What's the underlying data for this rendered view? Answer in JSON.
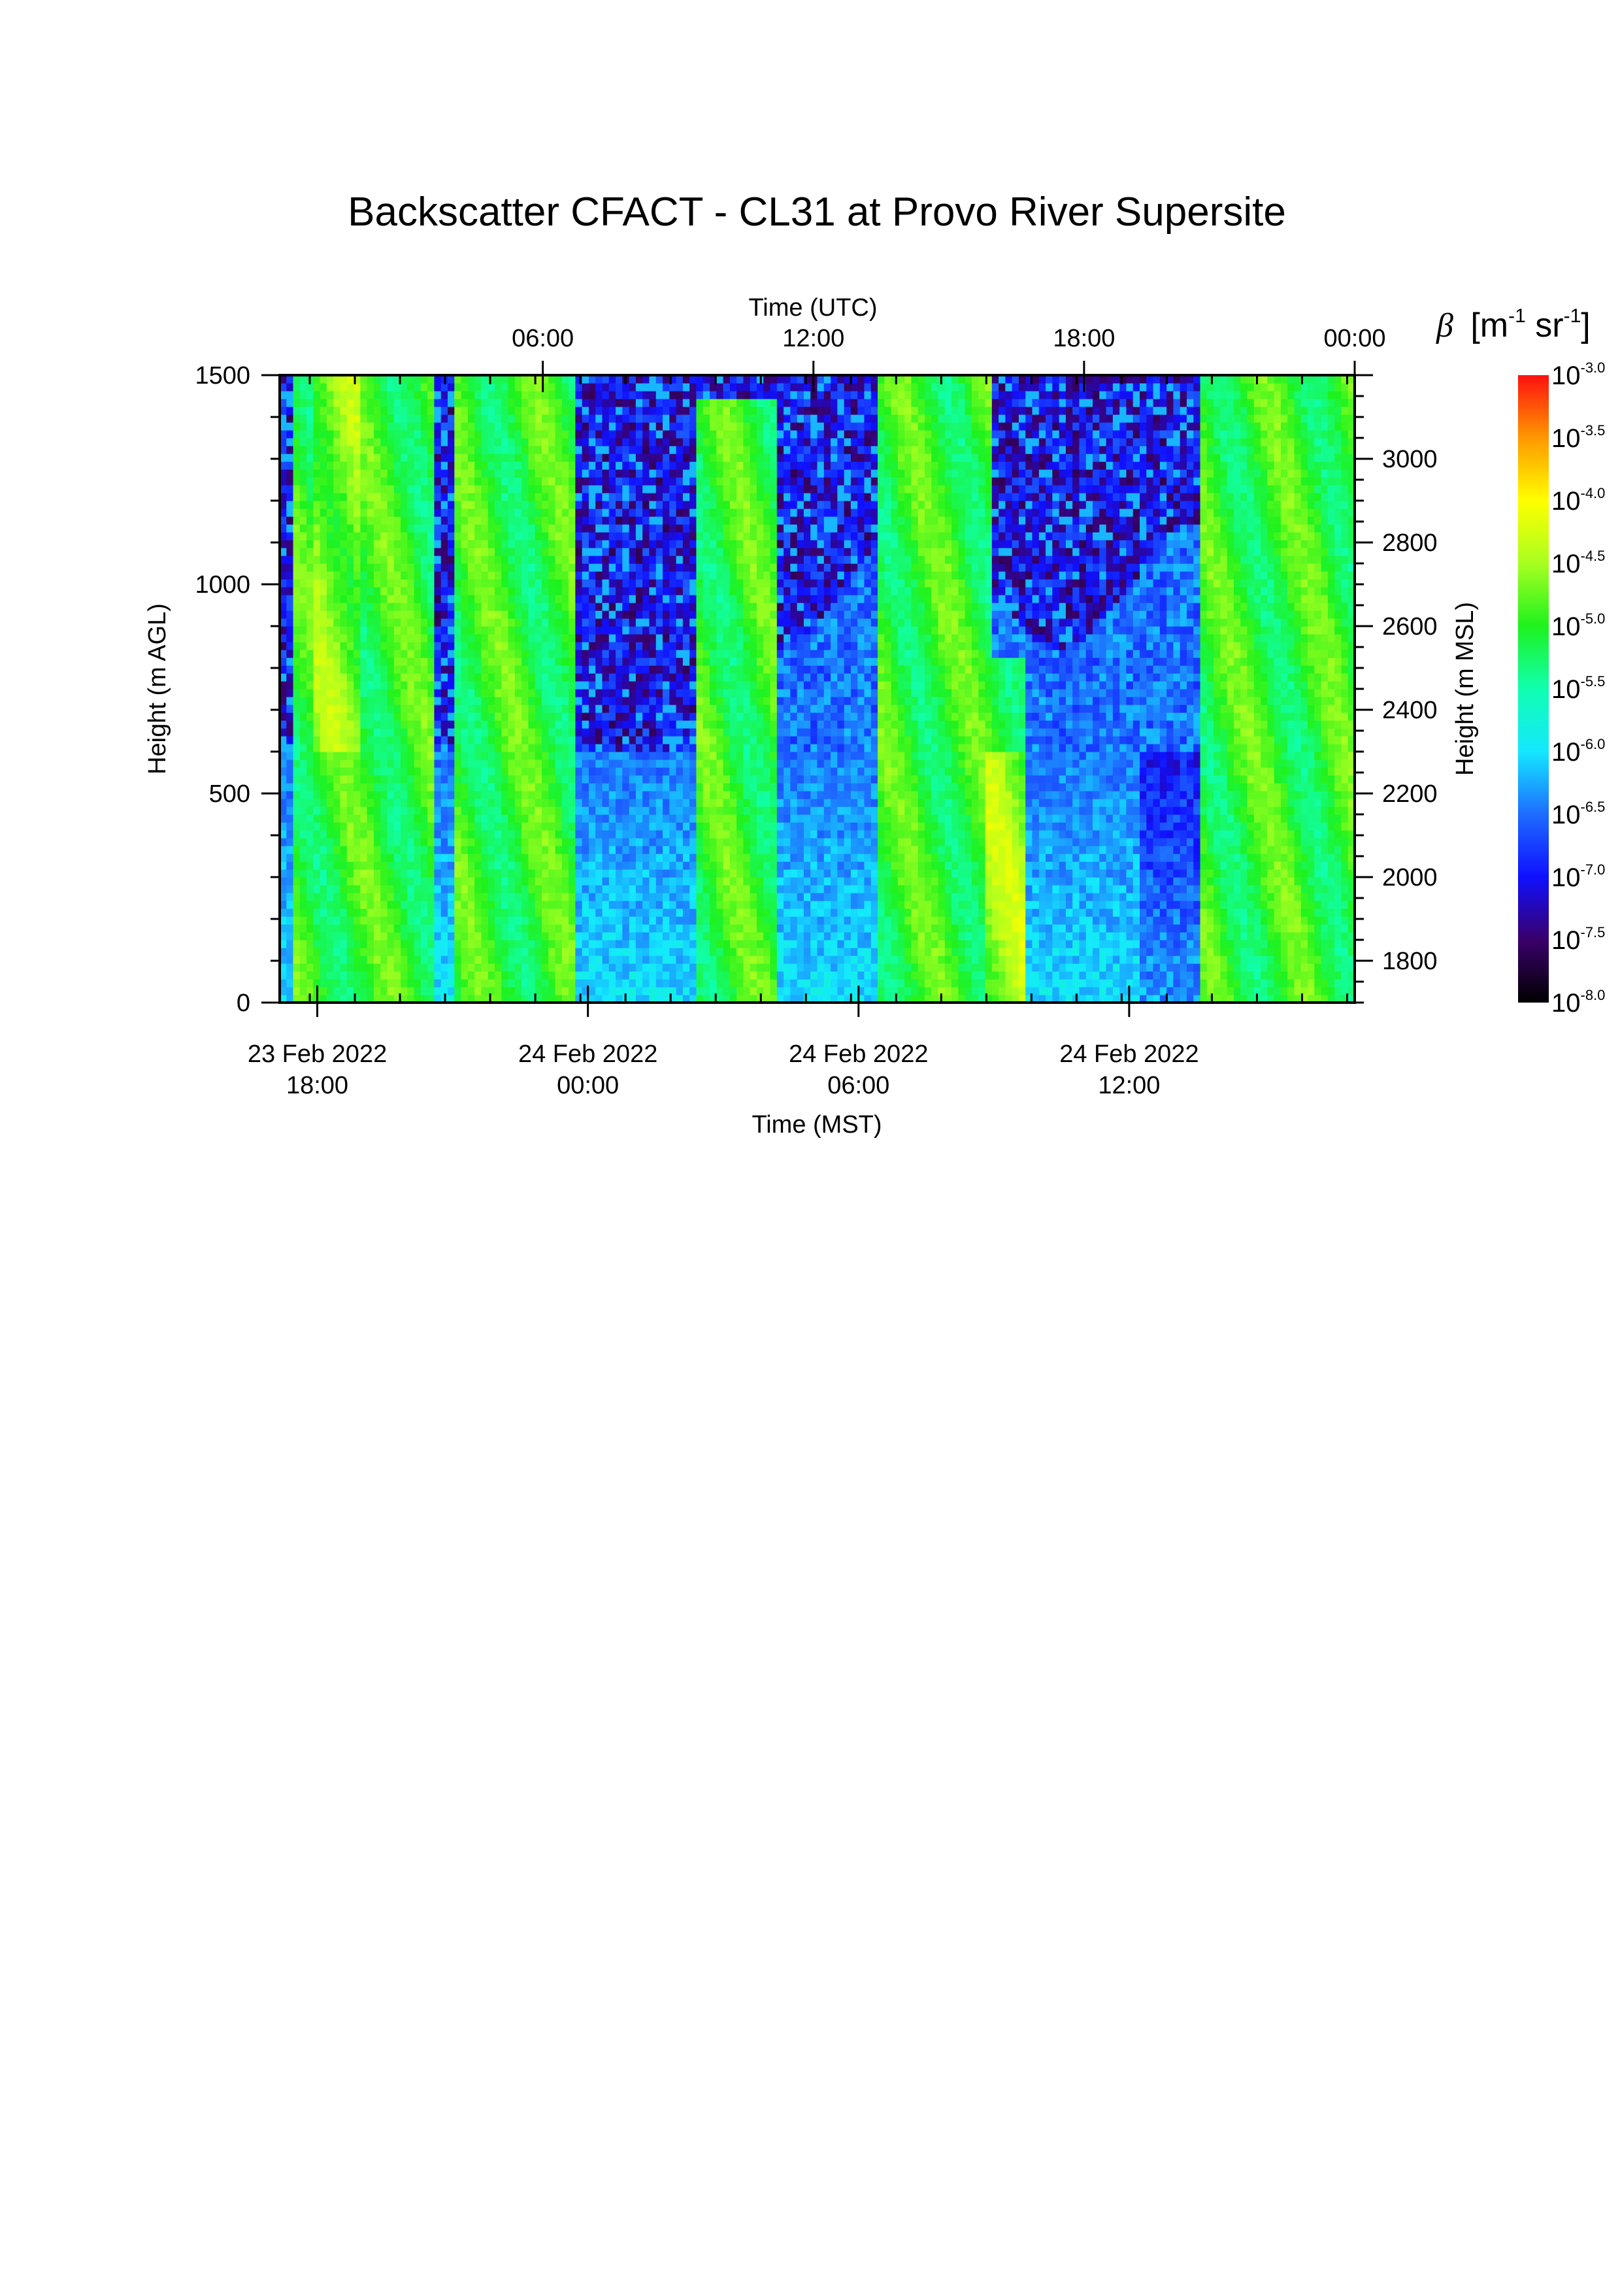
{
  "chart_data": {
    "type": "heatmap",
    "title": "Backscatter CFACT - CL31 at Provo River Supersite",
    "x_bottom": {
      "label": "Time (MST)",
      "range_hours_since_start_label": null,
      "ticks": [
        {
          "line1": "23 Feb 2022",
          "line2": "18:00",
          "value": "2022-02-23 18:00"
        },
        {
          "line1": "24 Feb 2022",
          "line2": "00:00",
          "value": "2022-02-24 00:00"
        },
        {
          "line1": "24 Feb 2022",
          "line2": "06:00",
          "value": "2022-02-24 06:00"
        },
        {
          "line1": "24 Feb 2022",
          "line2": "12:00",
          "value": "2022-02-24 12:00"
        }
      ],
      "range": [
        "2022-02-23 17:10",
        "2022-02-24 17:00"
      ]
    },
    "x_top": {
      "label": "Time (UTC)",
      "ticks": [
        "06:00",
        "12:00",
        "18:00",
        "00:00"
      ]
    },
    "y_left": {
      "label": "Height (m AGL)",
      "ticks": [
        0,
        500,
        1000,
        1500
      ],
      "range": [
        0,
        1500
      ]
    },
    "y_right": {
      "label": "Height (m MSL)",
      "ticks": [
        1800,
        2000,
        2200,
        2400,
        2600,
        2800,
        3000
      ],
      "range": [
        1700,
        3200
      ]
    },
    "colorbar": {
      "label_symbol": "β",
      "label_units_base": "[m",
      "label_units_exp1": "-1",
      "label_units_mid": " sr",
      "label_units_exp2": "-1",
      "label_units_end": "]",
      "base": "10",
      "exponents": [
        "-3.0",
        "-3.5",
        "-4.0",
        "-4.5",
        "-5.0",
        "-5.5",
        "-6.0",
        "-6.5",
        "-7.0",
        "-7.5",
        "-8.0"
      ],
      "range_log10": [
        -8.0,
        -3.0
      ],
      "colormap": [
        "#000000",
        "#3a006a",
        "#1010ff",
        "#1e6cff",
        "#14e8ff",
        "#10ffb0",
        "#1ef21e",
        "#a8ff20",
        "#ffff00",
        "#ff9800",
        "#ff1010"
      ]
    },
    "summary_columns_log10": {
      "note_hidden": null
    }
  }
}
